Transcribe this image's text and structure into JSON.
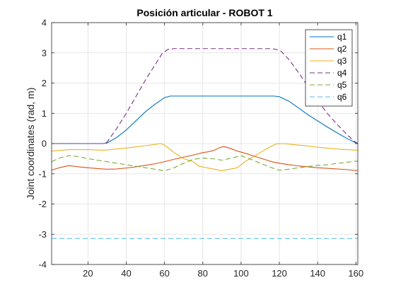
{
  "chart_data": {
    "type": "line",
    "title": "Posición articular - ROBOT 1",
    "xlabel": "",
    "ylabel": "Joint coordinates (rad, m)",
    "xlim": [
      1,
      161
    ],
    "ylim": [
      -4,
      4
    ],
    "xticks": [
      20,
      40,
      60,
      80,
      100,
      120,
      140,
      160
    ],
    "yticks": [
      -4,
      -3,
      -2,
      -1,
      0,
      1,
      2,
      3,
      4
    ],
    "grid": true,
    "legend_position": "top-right",
    "series": [
      {
        "name": "q1",
        "color": "#0072BD",
        "dash": "solid",
        "points": [
          [
            1,
            0
          ],
          [
            28,
            0
          ],
          [
            30,
            0.02
          ],
          [
            35,
            0.2
          ],
          [
            40,
            0.45
          ],
          [
            45,
            0.75
          ],
          [
            50,
            1.05
          ],
          [
            55,
            1.3
          ],
          [
            60,
            1.52
          ],
          [
            63,
            1.57
          ],
          [
            117,
            1.57
          ],
          [
            120,
            1.55
          ],
          [
            125,
            1.4
          ],
          [
            130,
            1.18
          ],
          [
            135,
            0.95
          ],
          [
            140,
            0.75
          ],
          [
            145,
            0.55
          ],
          [
            150,
            0.36
          ],
          [
            155,
            0.18
          ],
          [
            160,
            0.02
          ],
          [
            161,
            0
          ]
        ]
      },
      {
        "name": "q2",
        "color": "#D95319",
        "dash": "solid",
        "points": [
          [
            1,
            -0.88
          ],
          [
            5,
            -0.8
          ],
          [
            10,
            -0.73
          ],
          [
            15,
            -0.77
          ],
          [
            20,
            -0.8
          ],
          [
            25,
            -0.83
          ],
          [
            30,
            -0.85
          ],
          [
            35,
            -0.84
          ],
          [
            40,
            -0.81
          ],
          [
            45,
            -0.77
          ],
          [
            50,
            -0.72
          ],
          [
            55,
            -0.67
          ],
          [
            60,
            -0.6
          ],
          [
            65,
            -0.52
          ],
          [
            70,
            -0.45
          ],
          [
            75,
            -0.38
          ],
          [
            80,
            -0.3
          ],
          [
            83,
            -0.27
          ],
          [
            86,
            -0.22
          ],
          [
            89,
            -0.13
          ],
          [
            91,
            -0.1
          ],
          [
            93,
            -0.13
          ],
          [
            96,
            -0.2
          ],
          [
            98,
            -0.25
          ],
          [
            101,
            -0.3
          ],
          [
            106,
            -0.4
          ],
          [
            111,
            -0.5
          ],
          [
            116,
            -0.6
          ],
          [
            120,
            -0.65
          ],
          [
            125,
            -0.7
          ],
          [
            130,
            -0.74
          ],
          [
            135,
            -0.77
          ],
          [
            140,
            -0.8
          ],
          [
            145,
            -0.82
          ],
          [
            150,
            -0.84
          ],
          [
            155,
            -0.86
          ],
          [
            161,
            -0.9
          ]
        ]
      },
      {
        "name": "q3",
        "color": "#EDB120",
        "dash": "solid",
        "points": [
          [
            1,
            -0.25
          ],
          [
            10,
            -0.2
          ],
          [
            20,
            -0.2
          ],
          [
            28,
            -0.22
          ],
          [
            35,
            -0.18
          ],
          [
            40,
            -0.15
          ],
          [
            45,
            -0.11
          ],
          [
            50,
            -0.07
          ],
          [
            55,
            -0.03
          ],
          [
            58,
            0
          ],
          [
            60,
            -0.05
          ],
          [
            65,
            -0.3
          ],
          [
            70,
            -0.5
          ],
          [
            75,
            -0.6
          ],
          [
            78,
            -0.75
          ],
          [
            82,
            -0.8
          ],
          [
            86,
            -0.85
          ],
          [
            90,
            -0.9
          ],
          [
            94,
            -0.85
          ],
          [
            98,
            -0.8
          ],
          [
            102,
            -0.6
          ],
          [
            106,
            -0.45
          ],
          [
            110,
            -0.3
          ],
          [
            114,
            -0.15
          ],
          [
            118,
            -0.02
          ],
          [
            121,
            0
          ],
          [
            125,
            -0.02
          ],
          [
            130,
            -0.05
          ],
          [
            135,
            -0.08
          ],
          [
            140,
            -0.12
          ],
          [
            145,
            -0.15
          ],
          [
            150,
            -0.18
          ],
          [
            155,
            -0.2
          ],
          [
            161,
            -0.22
          ]
        ]
      },
      {
        "name": "q4",
        "color": "#7E2F8E",
        "dash": "dashed",
        "points": [
          [
            1,
            0
          ],
          [
            28,
            0
          ],
          [
            30,
            0.05
          ],
          [
            35,
            0.5
          ],
          [
            40,
            1.0
          ],
          [
            45,
            1.55
          ],
          [
            50,
            2.1
          ],
          [
            55,
            2.6
          ],
          [
            59,
            3.0
          ],
          [
            62,
            3.12
          ],
          [
            65,
            3.14
          ],
          [
            115,
            3.14
          ],
          [
            118,
            3.12
          ],
          [
            121,
            3.05
          ],
          [
            125,
            2.78
          ],
          [
            130,
            2.35
          ],
          [
            135,
            1.88
          ],
          [
            140,
            1.42
          ],
          [
            145,
            1.0
          ],
          [
            150,
            0.65
          ],
          [
            155,
            0.32
          ],
          [
            159,
            0.08
          ],
          [
            161,
            0
          ]
        ]
      },
      {
        "name": "q5",
        "color": "#77AC30",
        "dash": "dashed",
        "points": [
          [
            1,
            -0.6
          ],
          [
            5,
            -0.48
          ],
          [
            10,
            -0.4
          ],
          [
            15,
            -0.43
          ],
          [
            20,
            -0.5
          ],
          [
            25,
            -0.55
          ],
          [
            30,
            -0.6
          ],
          [
            35,
            -0.65
          ],
          [
            40,
            -0.7
          ],
          [
            45,
            -0.75
          ],
          [
            50,
            -0.8
          ],
          [
            55,
            -0.85
          ],
          [
            60,
            -0.9
          ],
          [
            65,
            -0.8
          ],
          [
            70,
            -0.65
          ],
          [
            75,
            -0.52
          ],
          [
            80,
            -0.48
          ],
          [
            85,
            -0.5
          ],
          [
            90,
            -0.55
          ],
          [
            95,
            -0.48
          ],
          [
            100,
            -0.4
          ],
          [
            105,
            -0.52
          ],
          [
            110,
            -0.65
          ],
          [
            115,
            -0.78
          ],
          [
            120,
            -0.88
          ],
          [
            125,
            -0.85
          ],
          [
            130,
            -0.8
          ],
          [
            135,
            -0.76
          ],
          [
            140,
            -0.72
          ],
          [
            145,
            -0.7
          ],
          [
            150,
            -0.66
          ],
          [
            155,
            -0.62
          ],
          [
            161,
            -0.58
          ]
        ]
      },
      {
        "name": "q6",
        "color": "#4DBEEE",
        "dash": "dashed",
        "points": [
          [
            1,
            -3.14
          ],
          [
            161,
            -3.14
          ]
        ]
      }
    ]
  }
}
